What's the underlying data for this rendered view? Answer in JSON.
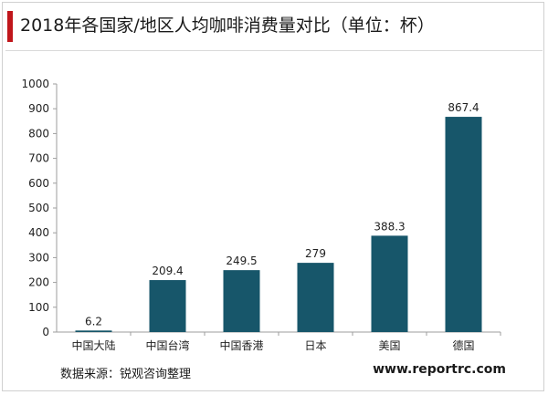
{
  "header": {
    "title": "2018年各国家/地区人均咖啡消费量对比（单位：杯）"
  },
  "footer": {
    "source": "数据来源：锐观咨询整理",
    "website": "www.reportrc.com"
  },
  "colors": {
    "accent": "#c0161b",
    "bar": "#17566a",
    "axis": "#9e9e9e"
  },
  "chart_data": {
    "type": "bar",
    "categories": [
      "中国大陆",
      "中国台湾",
      "中国香港",
      "日本",
      "美国",
      "德国"
    ],
    "values": [
      6.2,
      209.4,
      249.5,
      279,
      388.3,
      867.4
    ],
    "value_labels": [
      "6.2",
      "209.4",
      "249.5",
      "279",
      "388.3",
      "867.4"
    ],
    "title": "2018年各国家/地区人均咖啡消费量对比（单位：杯）",
    "xlabel": "",
    "ylabel": "",
    "ylim": [
      0,
      1000
    ],
    "yticks": [
      0,
      100,
      200,
      300,
      400,
      500,
      600,
      700,
      800,
      900,
      1000
    ],
    "grid": false,
    "legend": "none"
  }
}
